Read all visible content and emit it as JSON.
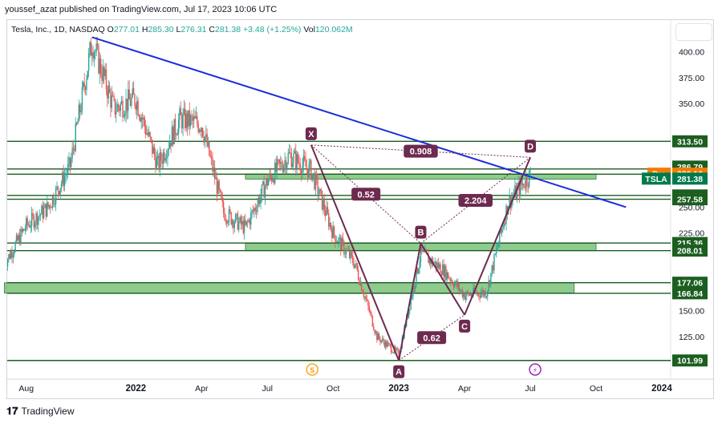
{
  "header": {
    "published": "youssef_azat published on TradingView.com, Jul 17, 2023 10:06 UTC",
    "symbol": "Tesla, Inc., 1D, NASDAQ",
    "o_label": "O",
    "o": "277.01",
    "h_label": "H",
    "h": "285.30",
    "l_label": "L",
    "l": "276.31",
    "c_label": "C",
    "c": "281.38",
    "change": "+3.48 (+1.25%)",
    "vol_label": "Vol",
    "vol": "120.062M"
  },
  "footer": {
    "brand": "TradingView"
  },
  "chart_data": {
    "type": "candlestick",
    "x_ticks": [
      "Aug",
      "2022",
      "Apr",
      "Jul",
      "Oct",
      "2023",
      "Apr",
      "Jul",
      "Oct",
      "2024"
    ],
    "y_ticks": [
      400,
      375,
      350,
      250,
      225,
      175,
      150,
      125
    ],
    "y_tick_labels": [
      "400.00",
      "375.00",
      "350.00",
      "250.00",
      "225.00",
      "175.00",
      "150.00",
      "125.00"
    ],
    "ylim": [
      94,
      425
    ],
    "colors": {
      "up": "#26a69a",
      "down": "#ef5350",
      "trend": "#1a2edb",
      "zone": "#5fb55f",
      "level": "#1b5e20",
      "pattern": "#6d2a4f",
      "pre": "#f57c00",
      "symbol": "#007a4d"
    },
    "price_path": [
      [
        "Jul 2021",
        195
      ],
      [
        "Aug 2021",
        232
      ],
      [
        "Sep 2021",
        250
      ],
      [
        "Oct 2021",
        290
      ],
      [
        "Nov 2021",
        410
      ],
      [
        "Dec 2021",
        345
      ],
      [
        "Jan 2022",
        355
      ],
      [
        "Feb 2022",
        290
      ],
      [
        "Mar 2022",
        335
      ],
      [
        "Apr 2022",
        330
      ],
      [
        "May 2022",
        245
      ],
      [
        "Jun 2022",
        230
      ],
      [
        "Jul 2022",
        275
      ],
      [
        "Aug 2022",
        300
      ],
      [
        "Sep 2022",
        285
      ],
      [
        "Oct 2022",
        225
      ],
      [
        "Nov 2022",
        195
      ],
      [
        "Dec 2022",
        125
      ],
      [
        "Jan 2023",
        108
      ],
      [
        "Feb 2023",
        205
      ],
      [
        "Mar 2023",
        190
      ],
      [
        "Apr 2023",
        165
      ],
      [
        "May 2023",
        168
      ],
      [
        "Jun 2023",
        255
      ],
      [
        "Jul 2023",
        281.38
      ]
    ],
    "trendline": {
      "from": [
        "Nov 2021",
        414
      ],
      "to": [
        "Nov 2023",
        250
      ]
    },
    "levels": [
      313.5,
      286.79,
      281.78,
      261.28,
      257.58,
      215.36,
      208.01,
      177.06,
      166.84,
      101.99
    ],
    "level_labels": [
      "313.50",
      "286.79",
      "281.78",
      "261.28",
      "257.58",
      "215.36",
      "208.01",
      "177.06",
      "166.84",
      "101.99"
    ],
    "zones": [
      {
        "from": "Jun 2022",
        "to": "Oct 2023",
        "low": 277,
        "high": 282
      },
      {
        "from": "Jun 2022",
        "to": "Oct 2023",
        "low": 208,
        "high": 215
      },
      {
        "from": "Jul 2021",
        "to": "Sep 2023",
        "low": 167,
        "high": 177
      }
    ],
    "xabcd": {
      "points": [
        {
          "label": "X",
          "date": "Sep 2022",
          "price": 310
        },
        {
          "label": "A",
          "date": "Jan 2023",
          "price": 102
        },
        {
          "label": "B",
          "date": "Feb 2023",
          "price": 215
        },
        {
          "label": "C",
          "date": "Apr 2023",
          "price": 146
        },
        {
          "label": "D",
          "date": "Jul 2023",
          "price": 298
        }
      ],
      "ratios": [
        "0.52",
        "0.62",
        "2.204",
        "0.908"
      ]
    },
    "price_labels": [
      {
        "tag": "Pre",
        "value": "286.16"
      },
      {
        "tag": "TSLA",
        "value": "281.38"
      }
    ],
    "event_icons": [
      "S",
      "⚡"
    ]
  }
}
